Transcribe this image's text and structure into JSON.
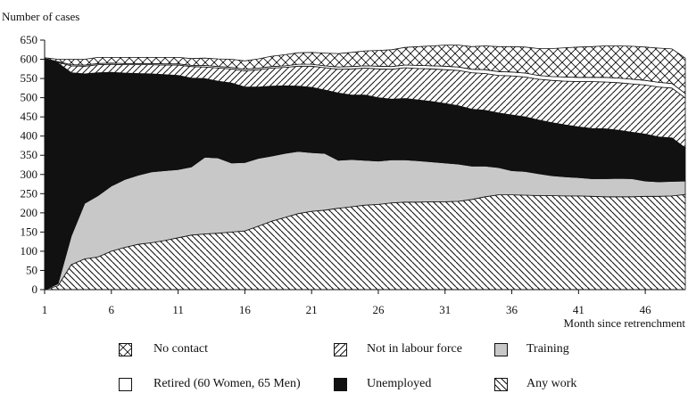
{
  "chart_data": {
    "type": "area",
    "stacked": true,
    "ylabel": "Number of cases",
    "xlabel": "Month since retrenchment",
    "ylim": [
      0,
      650
    ],
    "yticks": [
      0,
      50,
      100,
      150,
      200,
      250,
      300,
      350,
      400,
      450,
      500,
      550,
      600,
      650
    ],
    "xlim": [
      1,
      49
    ],
    "xticks": [
      1,
      6,
      11,
      16,
      21,
      26,
      31,
      36,
      41,
      46
    ],
    "grid": false,
    "legend_position": "bottom",
    "x": [
      1,
      2,
      3,
      4,
      5,
      6,
      7,
      8,
      9,
      10,
      11,
      12,
      13,
      14,
      15,
      16,
      17,
      18,
      19,
      20,
      21,
      22,
      23,
      24,
      25,
      26,
      27,
      28,
      29,
      30,
      31,
      32,
      33,
      34,
      35,
      36,
      37,
      38,
      39,
      40,
      41,
      42,
      43,
      44,
      45,
      46,
      47,
      48,
      49
    ],
    "series": [
      {
        "name": "Any work",
        "pattern": "diag-back",
        "values": [
          0,
          10,
          65,
          80,
          85,
          100,
          110,
          118,
          122,
          128,
          135,
          142,
          145,
          147,
          150,
          153,
          165,
          178,
          188,
          198,
          204,
          207,
          212,
          216,
          220,
          222,
          226,
          228,
          228,
          229,
          229,
          230,
          235,
          242,
          247,
          247,
          246,
          245,
          245,
          244,
          244,
          243,
          242,
          242,
          242,
          243,
          243,
          244,
          248
        ]
      },
      {
        "name": "Training",
        "pattern": "gray",
        "values": [
          0,
          5,
          75,
          145,
          160,
          170,
          177,
          180,
          185,
          182,
          178,
          178,
          200,
          196,
          180,
          178,
          177,
          170,
          167,
          162,
          153,
          148,
          125,
          123,
          117,
          113,
          112,
          110,
          108,
          104,
          101,
          97,
          87,
          80,
          71,
          63,
          62,
          57,
          52,
          50,
          48,
          46,
          47,
          48,
          47,
          40,
          38,
          38,
          35
        ]
      },
      {
        "name": "Unemployed",
        "pattern": "black",
        "values": [
          598,
          575,
          425,
          337,
          320,
          296,
          277,
          265,
          255,
          250,
          245,
          231,
          205,
          200,
          208,
          197,
          186,
          182,
          176,
          170,
          170,
          165,
          175,
          168,
          170,
          165,
          158,
          160,
          158,
          157,
          155,
          152,
          148,
          145,
          142,
          145,
          142,
          140,
          138,
          135,
          132,
          131,
          130,
          125,
          121,
          122,
          117,
          113,
          86
        ]
      },
      {
        "name": "Not in labour force",
        "pattern": "diag-fwd",
        "values": [
          2,
          2,
          18,
          20,
          21,
          21,
          22,
          23,
          24,
          25,
          27,
          30,
          30,
          34,
          37,
          42,
          45,
          47,
          48,
          52,
          55,
          58,
          62,
          68,
          70,
          75,
          78,
          80,
          82,
          85,
          88,
          92,
          95,
          96,
          98,
          102,
          104,
          106,
          110,
          114,
          118,
          122,
          122,
          124,
          126,
          128,
          130,
          130,
          130
        ]
      },
      {
        "name": "Retired (60 Women, 65 Men)",
        "pattern": "white",
        "values": [
          2,
          2,
          3,
          3,
          3,
          3,
          3,
          3,
          3,
          3,
          3,
          3,
          4,
          4,
          4,
          4,
          4,
          4,
          4,
          5,
          5,
          5,
          6,
          6,
          6,
          7,
          7,
          7,
          8,
          8,
          9,
          9,
          9,
          10,
          10,
          10,
          10,
          10,
          10,
          11,
          11,
          11,
          12,
          12,
          12,
          12,
          12,
          12,
          12
        ]
      },
      {
        "name": "No contact",
        "pattern": "cross",
        "values": [
          2,
          6,
          14,
          15,
          16,
          15,
          16,
          16,
          16,
          17,
          17,
          18,
          19,
          20,
          21,
          22,
          24,
          27,
          29,
          30,
          31,
          33,
          35,
          37,
          39,
          41,
          44,
          46,
          49,
          52,
          55,
          57,
          59,
          62,
          65,
          66,
          68,
          70,
          73,
          76,
          79,
          80,
          82,
          84,
          86,
          87,
          89,
          90,
          92
        ]
      }
    ],
    "legend": [
      {
        "label": "No contact",
        "pattern": "cross"
      },
      {
        "label": "Not in labour force",
        "pattern": "diag-fwd"
      },
      {
        "label": "Training",
        "pattern": "gray"
      },
      {
        "label": "Retired (60 Women, 65 Men)",
        "pattern": "white"
      },
      {
        "label": "Unemployed",
        "pattern": "black"
      },
      {
        "label": "Any work",
        "pattern": "diag-back"
      }
    ],
    "colors": {
      "gray": "#c8c8c8",
      "black": "#111111",
      "stroke": "#111111"
    }
  }
}
